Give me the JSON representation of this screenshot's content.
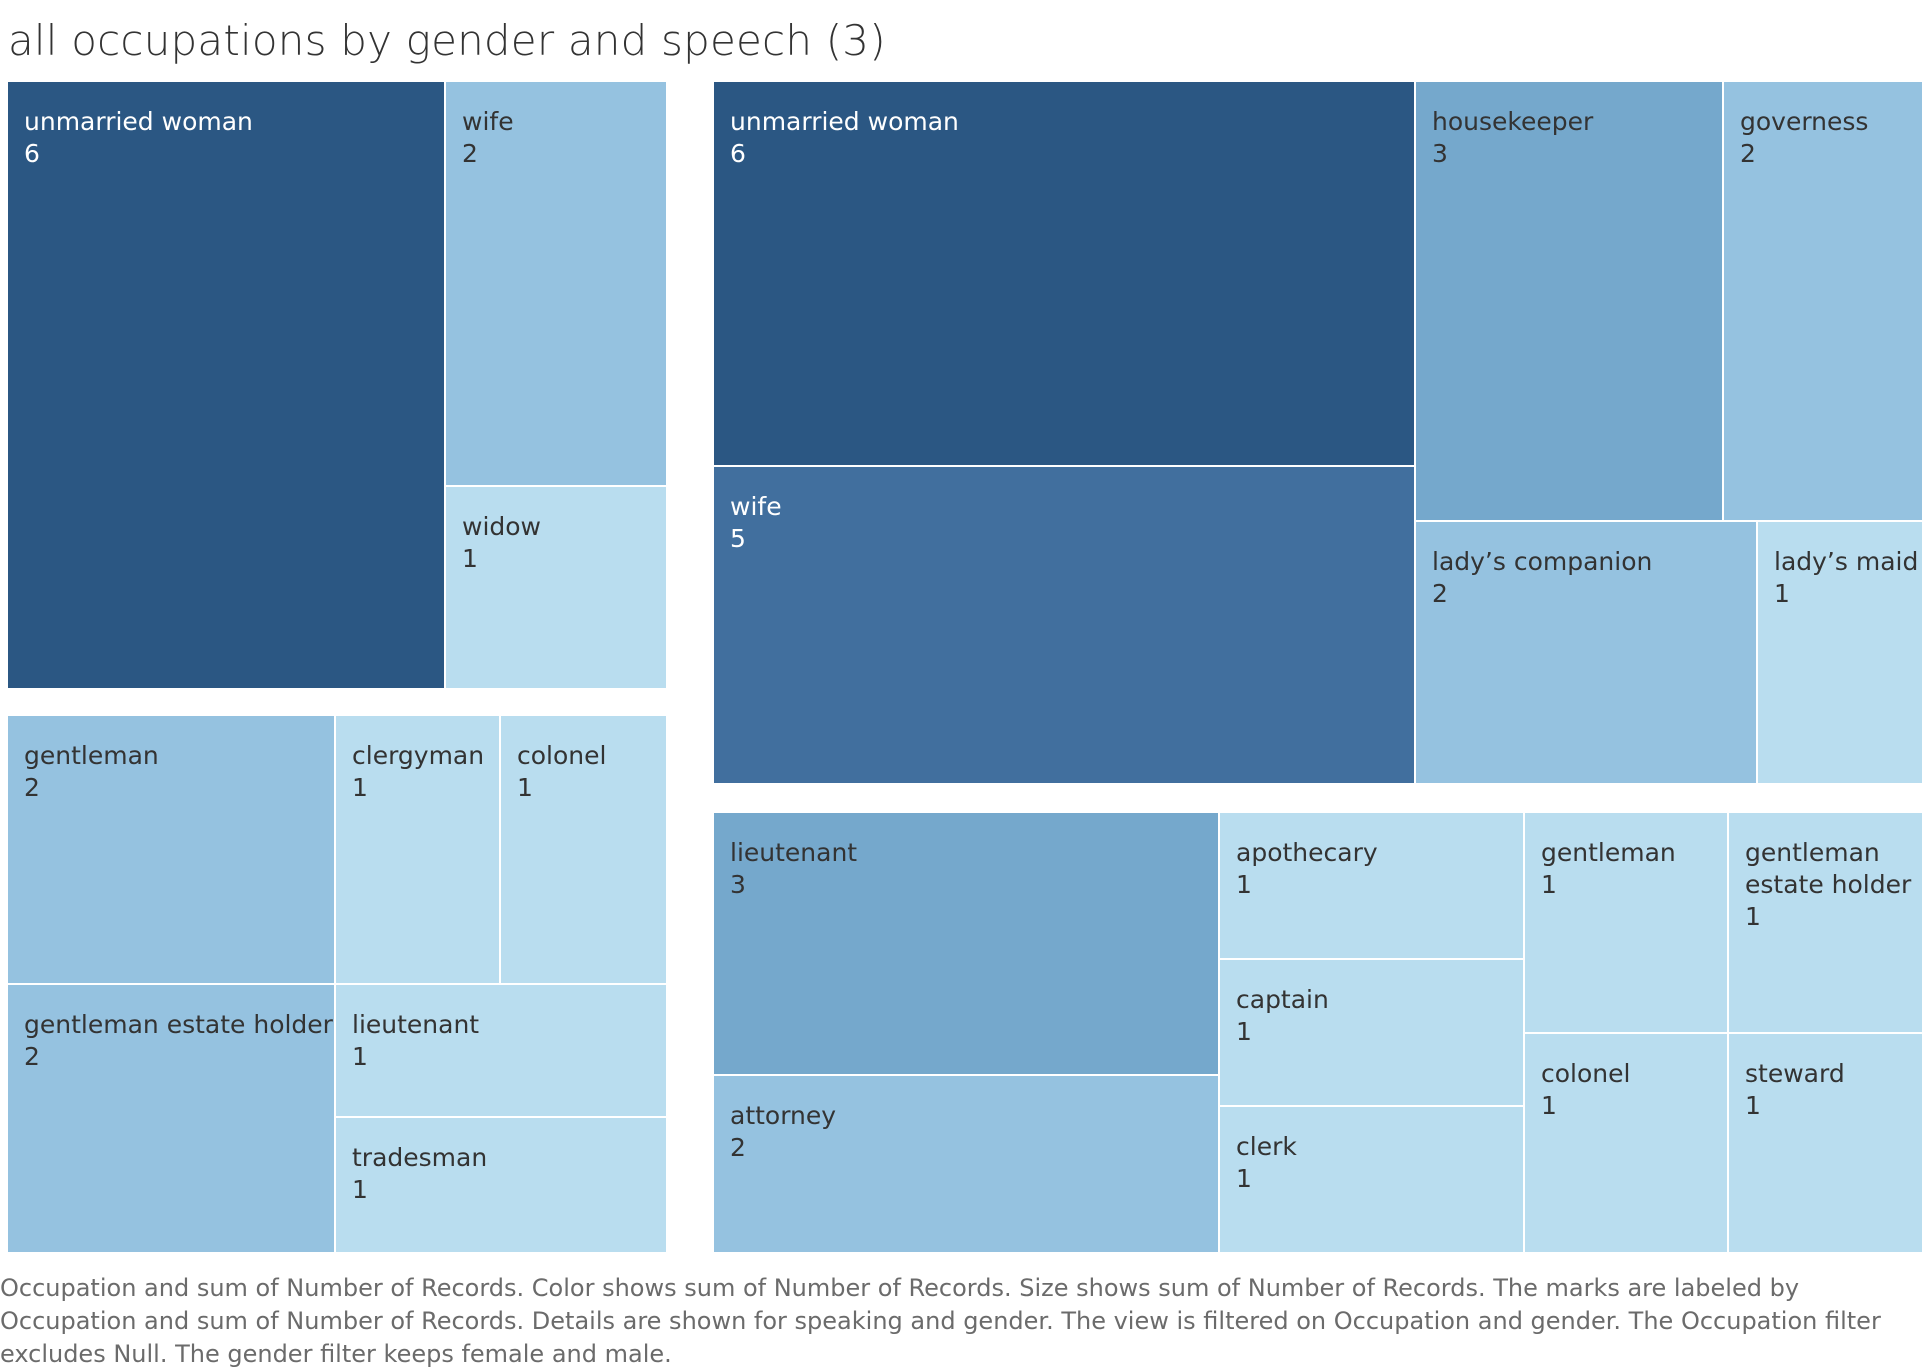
{
  "title": "all occupations by gender and speech (3)",
  "caption": "Occupation and sum of Number of Records.  Color shows sum of Number of Records.  Size shows sum of Number of Records.  The marks are labeled by Occupation and sum of Number of Records.  Details are shown for speaking and gender. The view is filtered on Occupation and gender. The Occupation filter excludes Null. The gender filter keeps female and male.",
  "colors": {
    "6": "#2b5783",
    "5": "#416f9e",
    "3": "#75a8cc",
    "2": "#95c2e0",
    "1": "#b9ddef"
  },
  "chart_data": {
    "type": "treemap",
    "panels": [
      {
        "items": [
          {
            "label": "unmarried woman",
            "value": 6
          },
          {
            "label": "wife",
            "value": 2
          },
          {
            "label": "widow",
            "value": 1
          }
        ]
      },
      {
        "items": [
          {
            "label": "gentleman",
            "value": 2
          },
          {
            "label": "clergyman",
            "value": 1
          },
          {
            "label": "colonel",
            "value": 1
          },
          {
            "label": "gentleman estate holder",
            "value": 2
          },
          {
            "label": "lieutenant",
            "value": 1
          },
          {
            "label": "tradesman",
            "value": 1
          }
        ]
      },
      {
        "items": [
          {
            "label": "unmarried woman",
            "value": 6
          },
          {
            "label": "wife",
            "value": 5
          },
          {
            "label": "housekeeper",
            "value": 3
          },
          {
            "label": "governess",
            "value": 2
          },
          {
            "label": "lady’s companion",
            "value": 2
          },
          {
            "label": "lady’s maid",
            "value": 1
          }
        ]
      },
      {
        "items": [
          {
            "label": "lieutenant",
            "value": 3
          },
          {
            "label": "attorney",
            "value": 2
          },
          {
            "label": "apothecary",
            "value": 1
          },
          {
            "label": "captain",
            "value": 1
          },
          {
            "label": "clerk",
            "value": 1
          },
          {
            "label": "gentleman",
            "value": 1
          },
          {
            "label": "colonel",
            "value": 1
          },
          {
            "label": "gentleman\nestate holder",
            "value": 1
          },
          {
            "label": "steward",
            "value": 1
          }
        ]
      }
    ]
  }
}
